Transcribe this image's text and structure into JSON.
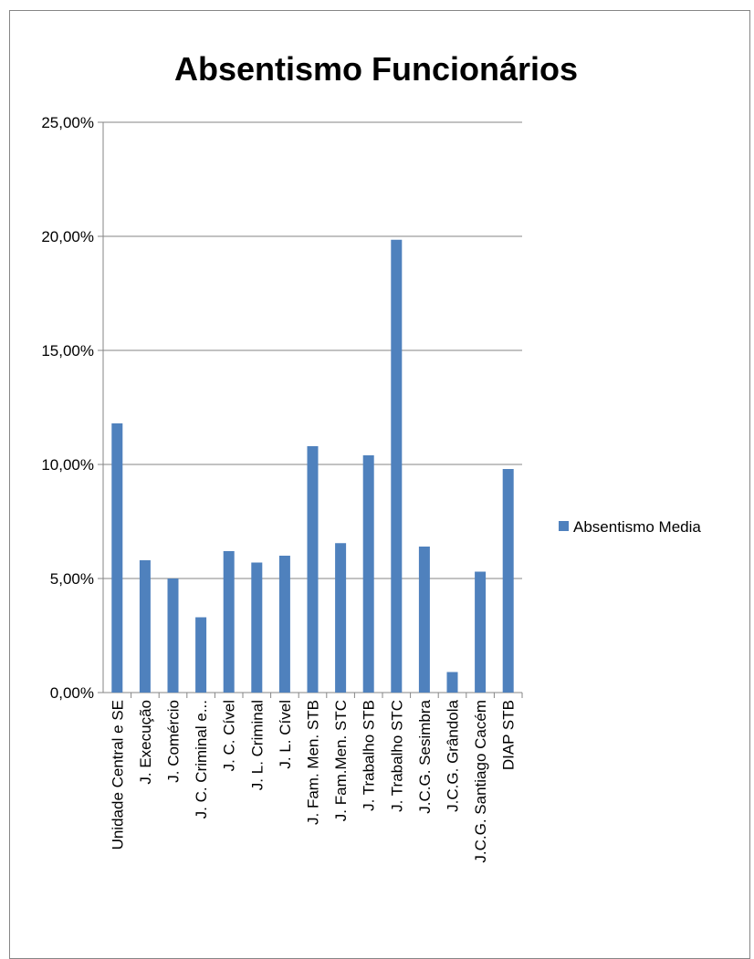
{
  "chart_data": {
    "type": "bar",
    "title": "Absentismo Funcionários",
    "categories": [
      "Unidade Central e SE",
      "J. Execução",
      "J. Comércio",
      "J. C. Criminal e...",
      "J. C. Cível",
      "J. L. Criminal",
      "J. L. Cível",
      "J. Fam. Men. STB",
      "J. Fam.Men. STC",
      "J. Trabalho STB",
      "J. Trabalho STC",
      "J.C.G. Sesimbra",
      "J.C.G. Grândola",
      "J.C.G. Santiago Cacém",
      "DIAP STB"
    ],
    "series": [
      {
        "name": "Absentismo Media",
        "color": "#4f81bd",
        "values": [
          11.8,
          5.8,
          5.0,
          3.3,
          6.2,
          5.7,
          6.0,
          10.8,
          6.55,
          10.4,
          19.85,
          6.4,
          0.9,
          5.3,
          9.8
        ]
      }
    ],
    "y_ticks": [
      "0,00%",
      "5,00%",
      "10,00%",
      "15,00%",
      "20,00%",
      "25,00%"
    ],
    "ylim": [
      0,
      25
    ],
    "grid": true,
    "legend_position": "right"
  }
}
